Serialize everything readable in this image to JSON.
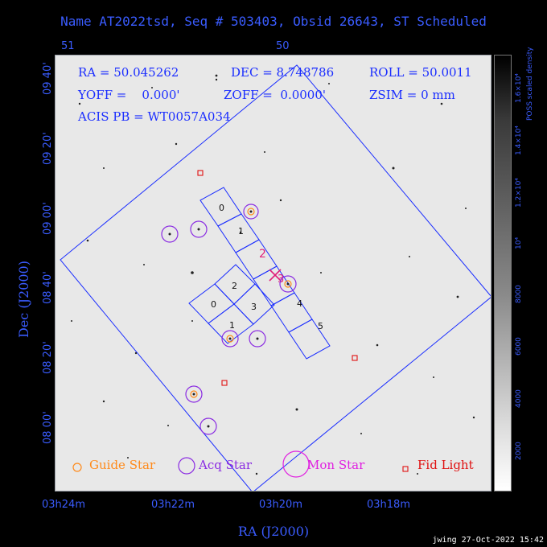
{
  "title": "Name AT2022tsd, Seq # 503403, Obsid 26643, ST Scheduled",
  "top_ticks": [
    "51",
    "50"
  ],
  "info": {
    "ra": "RA = 50.045262",
    "dec": "DEC = 8.748786",
    "roll": "ROLL = 50.0011",
    "yoff": "YOFF =    0.000'",
    "zoff": "ZOFF =  0.0000'",
    "zsim": "ZSIM = 0 mm",
    "acis": "ACIS PB = WT0057A034"
  },
  "y_ticks": [
    "09 40'",
    "09 20'",
    "09 00'",
    "08 40'",
    "08 20'",
    "08 00'"
  ],
  "x_ticks": [
    "03h24m",
    "03h22m",
    "03h20m",
    "03h18m"
  ],
  "x_axis_title": "RA (J2000)",
  "y_axis_title": "Dec (J2000)",
  "colorbar": {
    "title_line1": "POSS scaled density",
    "ticks": [
      "2000",
      "4000",
      "6000",
      "8000",
      "10⁴",
      "1.2×10⁴",
      "1.4×10⁴",
      "1.6×10⁴"
    ]
  },
  "ccds": {
    "s_labels": [
      "0",
      "1",
      "2",
      "3",
      "4",
      "5"
    ],
    "i_labels": [
      "2",
      "0",
      "3",
      "1"
    ]
  },
  "target_marker_label": "3",
  "legend": {
    "guide": "Guide Star",
    "acq": "Acq Star",
    "mon": "Mon Star",
    "fid": "Fid Light"
  },
  "colors": {
    "guide": "#ff8a1a",
    "acq": "#8a2be2",
    "mon": "#e020e0",
    "fid": "#e01010",
    "field": "#1a2dff",
    "target": "#e0207a"
  },
  "footer": "jwing 27-Oct-2022 15:42"
}
